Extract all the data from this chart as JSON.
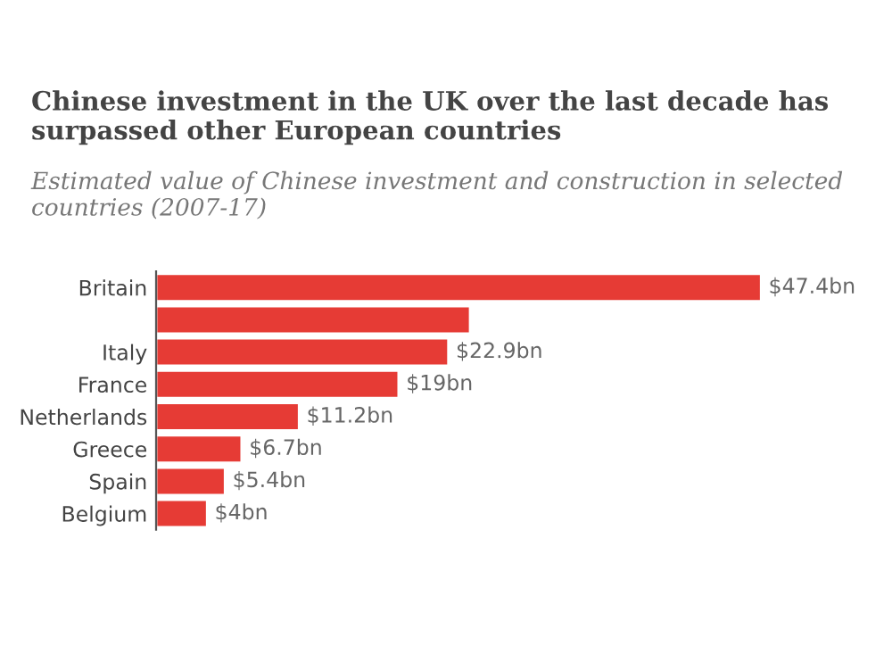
{
  "chart_data": {
    "type": "bar",
    "orientation": "horizontal",
    "title": "Chinese investment in the UK over the last decade has surpassed other European countries",
    "subtitle": "Estimated value of Chinese investment and construction in selected countries (2007-17)",
    "categories": [
      "Britain",
      null,
      "Italy",
      "France",
      "Netherlands",
      "Greece",
      "Spain",
      "Belgium"
    ],
    "values": [
      47.4,
      24.6,
      22.9,
      19,
      11.2,
      6.7,
      5.4,
      4
    ],
    "value_labels": [
      "$47.4bn",
      null,
      "$22.9bn",
      "$19bn",
      "$11.2bn",
      "$6.7bn",
      "$5.4bn",
      "$4bn"
    ],
    "color": "#e63b35",
    "grid": false,
    "legend": false
  }
}
